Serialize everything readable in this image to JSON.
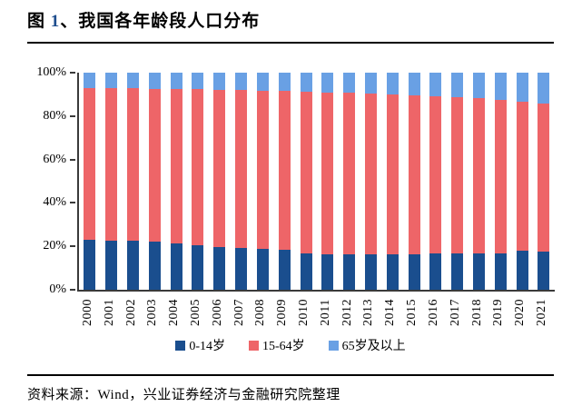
{
  "page": {
    "title_prefix": "图 ",
    "title_number": "1",
    "title_suffix": "、我国各年龄段人口分布",
    "source_note": "资料来源：Wind，兴业证券经济与金融研究院整理"
  },
  "colors": {
    "series_0_14": "#1a4e8e",
    "series_15_64": "#ee6568",
    "series_65_plus": "#69a0e4",
    "axis": "#3a3a3a",
    "title_number_accent": "#1f4e8e"
  },
  "chart_data": {
    "type": "bar",
    "stacked": true,
    "percent_stacked": true,
    "title": "我国各年龄段人口分布",
    "xlabel": "",
    "ylabel": "",
    "ylim": [
      0,
      100
    ],
    "y_ticks": [
      "0%",
      "20%",
      "40%",
      "60%",
      "80%",
      "100%"
    ],
    "grid": false,
    "legend_position": "bottom",
    "categories": [
      "2000",
      "2001",
      "2002",
      "2003",
      "2004",
      "2005",
      "2006",
      "2007",
      "2008",
      "2009",
      "2010",
      "2011",
      "2012",
      "2013",
      "2014",
      "2015",
      "2016",
      "2017",
      "2018",
      "2019",
      "2020",
      "2021"
    ],
    "series": [
      {
        "name": "0-14岁",
        "color": "#1a4e8e",
        "values": [
          22.9,
          22.5,
          22.4,
          22.1,
          21.5,
          20.3,
          19.8,
          19.4,
          19.0,
          18.5,
          16.6,
          16.5,
          16.5,
          16.4,
          16.5,
          16.5,
          16.7,
          16.8,
          16.9,
          16.8,
          17.9,
          17.5
        ]
      },
      {
        "name": "15-64岁",
        "color": "#ee6568",
        "values": [
          70.1,
          70.4,
          70.3,
          70.4,
          70.9,
          72.0,
          72.3,
          72.5,
          72.7,
          73.0,
          74.5,
          74.4,
          74.1,
          73.9,
          73.4,
          73.0,
          72.5,
          71.8,
          71.2,
          70.6,
          68.6,
          68.3
        ]
      },
      {
        "name": "65岁及以上",
        "color": "#69a0e4",
        "values": [
          7.0,
          7.1,
          7.3,
          7.5,
          7.6,
          7.7,
          7.9,
          8.1,
          8.3,
          8.5,
          8.9,
          9.1,
          9.4,
          9.7,
          10.1,
          10.5,
          10.8,
          11.4,
          11.9,
          12.6,
          13.5,
          14.2
        ]
      }
    ]
  }
}
